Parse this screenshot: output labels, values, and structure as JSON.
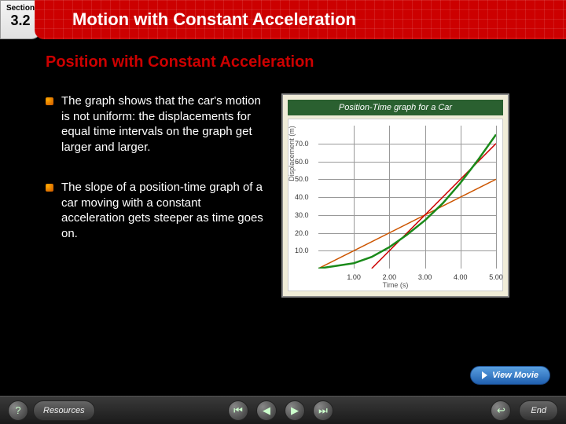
{
  "header": {
    "section_label": "Section",
    "section_number": "3.2",
    "title": "Motion with Constant Acceleration"
  },
  "subtitle": "Position with Constant Acceleration",
  "bullets": [
    "The graph shows that the car's motion is not uniform: the displacements for equal time intervals on the graph get larger and larger.",
    "The slope of a position-time graph of a car moving with a constant acceleration gets steeper as time goes on."
  ],
  "chart": {
    "type": "line",
    "title": "Position-Time graph for a Car",
    "x_axis_title": "Time (s)",
    "y_axis_title": "Displacement (m)",
    "background_color": "#ffffff",
    "panel_color": "#f0ecd8",
    "title_bar_color": "#2a6030",
    "grid_color": "#999999",
    "xlim": [
      0,
      5
    ],
    "ylim": [
      0,
      80
    ],
    "x_ticks": [
      1.0,
      2.0,
      3.0,
      4.0,
      5.0
    ],
    "y_ticks": [
      10.0,
      20.0,
      30.0,
      40.0,
      50.0,
      60.0,
      70.0
    ],
    "curve_color": "#1a8a1a",
    "curve_width": 2.5,
    "tangent_colors": [
      "#cc5500",
      "#cc0000"
    ],
    "tangent_width": 1.5,
    "curve_points": [
      [
        0,
        0
      ],
      [
        0.5,
        1.5
      ],
      [
        1,
        3
      ],
      [
        1.5,
        6.5
      ],
      [
        2,
        12
      ],
      [
        2.5,
        19
      ],
      [
        3,
        27
      ],
      [
        3.5,
        36.5
      ],
      [
        4,
        48
      ],
      [
        4.5,
        61
      ],
      [
        5,
        75
      ]
    ],
    "tangent1": [
      [
        0,
        0
      ],
      [
        5,
        50
      ]
    ],
    "tangent2": [
      [
        1.5,
        0
      ],
      [
        5,
        70
      ]
    ],
    "tick_fontsize": 9
  },
  "view_movie_label": "View Movie",
  "footer": {
    "help_icon": "?",
    "resources_label": "Resources",
    "end_label": "End"
  }
}
